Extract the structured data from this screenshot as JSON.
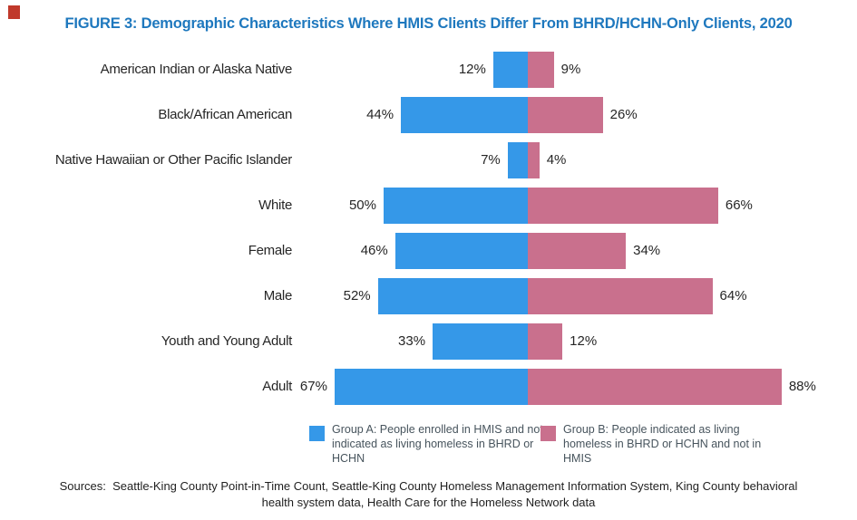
{
  "figure": {
    "title": "FIGURE 3: Demographic Characteristics Where HMIS Clients Differ From BHRD/HCHN-Only Clients, 2020",
    "title_color": "#1E78BE",
    "red_marker_color": "#C0392B"
  },
  "chart_data": {
    "type": "bar",
    "subtype": "diverging-horizontal",
    "categories": [
      "American Indian or Alaska Native",
      "Black/African American",
      "Native Hawaiian or Other Pacific Islander",
      "White",
      "Female",
      "Male",
      "Youth and Young Adult",
      "Adult"
    ],
    "series": [
      {
        "name": "Group A: People enrolled in HMIS and not indicated as living homeless in BHRD or HCHN",
        "side": "left",
        "color": "#3598E8",
        "values": [
          12,
          44,
          7,
          50,
          46,
          52,
          33,
          67
        ]
      },
      {
        "name": "Group B: People indicated as living homeless in BHRD or HCHN and not in HMIS",
        "side": "right",
        "color": "#C9708D",
        "values": [
          9,
          26,
          4,
          66,
          34,
          64,
          12,
          88
        ]
      }
    ],
    "value_suffix": "%",
    "value_labels": true,
    "axis": {
      "center_value": 0,
      "left_max": 70,
      "right_max": 90,
      "gridlines": false
    },
    "legend_position": "bottom"
  },
  "legend": {
    "items": [
      {
        "label": "Group A: People enrolled in HMIS and not indicated as living homeless in BHRD or HCHN",
        "color": "#3598E8"
      },
      {
        "label": "Group B: People indicated as living homeless in BHRD or HCHN and not in HMIS",
        "color": "#C9708D"
      }
    ]
  },
  "sources": "Sources:  Seattle-King County Point-in-Time Count, Seattle-King County Homeless Management Information System, King County behavioral health system data, Health Care for the Homeless Network data"
}
